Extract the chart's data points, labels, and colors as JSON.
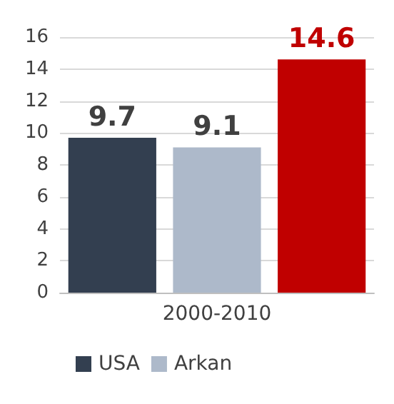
{
  "chart_data": {
    "type": "bar",
    "categories": [
      null,
      "2000-2010",
      null
    ],
    "series": [
      {
        "name": "USA",
        "color": "#333f50",
        "values": [
          9.7,
          null,
          null
        ]
      },
      {
        "name": "Arkan",
        "color": "#adb9ca",
        "values": [
          null,
          9.1,
          null
        ]
      },
      {
        "color": "#c00000",
        "values": [
          null,
          null,
          14.6
        ]
      }
    ],
    "ylim": [
      0,
      16
    ],
    "yticks": [
      0,
      2,
      4,
      6,
      8,
      10,
      12,
      14,
      16
    ],
    "grid": "y",
    "legend": "bottom",
    "data_labels": true
  }
}
